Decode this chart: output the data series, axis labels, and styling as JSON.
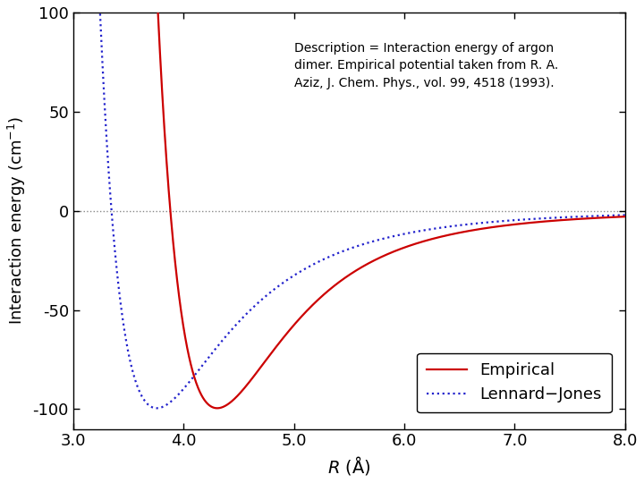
{
  "xlim": [
    3.0,
    8.0
  ],
  "ylim": [
    -110,
    100
  ],
  "xticks": [
    3.0,
    4.0,
    5.0,
    6.0,
    7.0,
    8.0
  ],
  "yticks": [
    -100,
    -50,
    0,
    50,
    100
  ],
  "xlabel": "R (Å)",
  "ylabel": "Interaction energy (cm",
  "ylabel_super": "−1",
  "annotation": "Description = Interaction energy of argon\ndimer. Empirical potential taken from R. A.\nAziz, J. Chem. Phys., vol. 99, 4518 (1993).",
  "empirical_color": "#cc0000",
  "lj_color": "#2222cc",
  "empirical_label": "Empirical",
  "lj_label": "Lennard−Jones",
  "background_color": "#ffffff",
  "epsilon_empirical": 99.5,
  "r_min_empirical": 3.757,
  "epsilon_lj": 99.5,
  "r_min_lj": 3.757,
  "fontsize": 13,
  "legend_fontsize": 13,
  "figsize": [
    7.2,
    5.4
  ],
  "dpi": 100
}
